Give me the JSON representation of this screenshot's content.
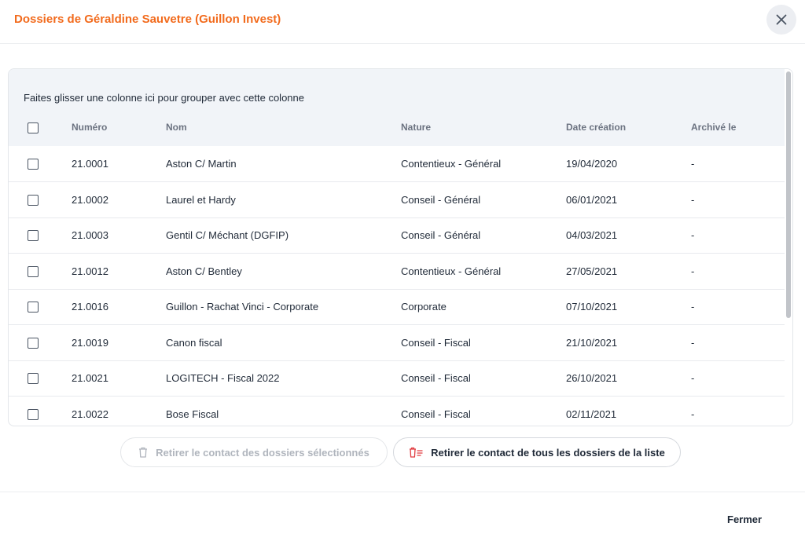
{
  "dialog": {
    "title": "Dossiers de Géraldine Sauvetre (Guillon Invest)"
  },
  "grid": {
    "group_hint": "Faites glisser une colonne ici pour grouper avec cette colonne",
    "columns": [
      "Numéro",
      "Nom",
      "Nature",
      "Date création",
      "Archivé le"
    ],
    "rows": [
      {
        "numero": "21.0001",
        "nom": "Aston C/ Martin",
        "nature": "Contentieux - Général",
        "date": "19/04/2020",
        "archive": "-"
      },
      {
        "numero": "21.0002",
        "nom": "Laurel et Hardy",
        "nature": "Conseil - Général",
        "date": "06/01/2021",
        "archive": "-"
      },
      {
        "numero": "21.0003",
        "nom": "Gentil C/ Méchant (DGFIP)",
        "nature": "Conseil - Général",
        "date": "04/03/2021",
        "archive": "-"
      },
      {
        "numero": "21.0012",
        "nom": "Aston C/ Bentley",
        "nature": "Contentieux - Général",
        "date": "27/05/2021",
        "archive": "-"
      },
      {
        "numero": "21.0016",
        "nom": "Guillon - Rachat Vinci - Corporate",
        "nature": "Corporate",
        "date": "07/10/2021",
        "archive": "-"
      },
      {
        "numero": "21.0019",
        "nom": "Canon fiscal",
        "nature": "Conseil - Fiscal",
        "date": "21/10/2021",
        "archive": "-"
      },
      {
        "numero": "21.0021",
        "nom": "LOGITECH - Fiscal 2022",
        "nature": "Conseil - Fiscal",
        "date": "26/10/2021",
        "archive": "-"
      },
      {
        "numero": "21.0022",
        "nom": "Bose Fiscal",
        "nature": "Conseil - Fiscal",
        "date": "02/11/2021",
        "archive": "-"
      }
    ]
  },
  "actions": {
    "remove_selected": "Retirer le contact des dossiers sélectionnés",
    "remove_all": "Retirer le contact de tous les dossiers de la liste"
  },
  "footer": {
    "close_label": "Fermer"
  },
  "colors": {
    "accent": "#f26b1d",
    "danger": "#e0393e"
  },
  "icons": {
    "close": "close-icon",
    "trash": "trash-icon",
    "trash_list": "trash-list-icon"
  }
}
